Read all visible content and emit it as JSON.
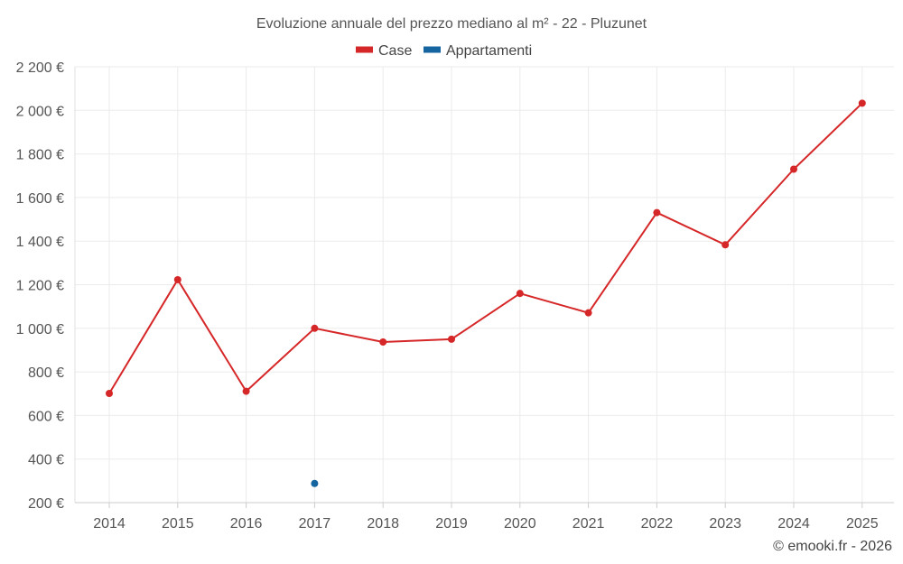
{
  "chart_data": {
    "type": "line",
    "title": "Evoluzione annuale del prezzo mediano al m² - 22 - Pluzunet",
    "categories": [
      "2014",
      "2015",
      "2016",
      "2017",
      "2018",
      "2019",
      "2020",
      "2021",
      "2022",
      "2023",
      "2024",
      "2025"
    ],
    "series": [
      {
        "name": "Case",
        "color": "#d62728",
        "values": [
          701,
          1223,
          711,
          1000,
          937,
          950,
          1160,
          1071,
          1531,
          1383,
          1730,
          2033
        ]
      },
      {
        "name": "Appartamenti",
        "color": "#1565a0",
        "values": [
          null,
          null,
          null,
          288,
          null,
          null,
          null,
          null,
          null,
          null,
          null,
          null
        ]
      }
    ],
    "yticks": [
      200,
      400,
      600,
      800,
      1000,
      1200,
      1400,
      1600,
      1800,
      2000,
      2200
    ],
    "ytick_labels": [
      "200 €",
      "400 €",
      "600 €",
      "800 €",
      "1 000 €",
      "1 200 €",
      "1 400 €",
      "1 600 €",
      "1 800 €",
      "2 000 €",
      "2 200 €"
    ],
    "ylim": [
      200,
      2200
    ],
    "xlabel": "",
    "ylabel": "",
    "legend_position": "top-center",
    "grid": true
  },
  "credit": "© emooki.fr - 2026"
}
